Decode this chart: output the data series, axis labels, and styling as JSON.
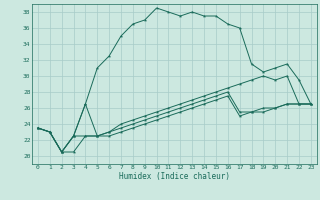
{
  "title": "",
  "xlabel": "Humidex (Indice chaleur)",
  "bg_color": "#cce8e0",
  "grid_color": "#a8ccc8",
  "line_color": "#1a6b5a",
  "x_values": [
    0,
    1,
    2,
    3,
    4,
    5,
    6,
    7,
    8,
    9,
    10,
    11,
    12,
    13,
    14,
    15,
    16,
    17,
    18,
    19,
    20,
    21,
    22,
    23
  ],
  "series1": [
    23.5,
    23.0,
    20.5,
    22.5,
    26.5,
    31.0,
    32.5,
    35.0,
    36.5,
    37.0,
    38.5,
    38.0,
    37.5,
    38.0,
    37.5,
    37.5,
    36.5,
    36.0,
    31.5,
    30.5,
    31.0,
    31.5,
    29.5,
    26.5
  ],
  "series2": [
    23.5,
    23.0,
    20.5,
    22.5,
    26.5,
    22.5,
    23.0,
    24.0,
    24.5,
    25.0,
    25.5,
    26.0,
    26.5,
    27.0,
    27.5,
    28.0,
    28.5,
    29.0,
    29.5,
    30.0,
    29.5,
    30.0,
    26.5,
    26.5
  ],
  "series3": [
    23.5,
    23.0,
    20.5,
    22.5,
    22.5,
    22.5,
    23.0,
    23.5,
    24.0,
    24.5,
    25.0,
    25.5,
    26.0,
    26.5,
    27.0,
    27.5,
    28.0,
    25.5,
    25.5,
    26.0,
    26.0,
    26.5,
    26.5,
    26.5
  ],
  "series4": [
    23.5,
    23.0,
    20.5,
    20.5,
    22.5,
    22.5,
    22.5,
    23.0,
    23.5,
    24.0,
    24.5,
    25.0,
    25.5,
    26.0,
    26.5,
    27.0,
    27.5,
    25.0,
    25.5,
    25.5,
    26.0,
    26.5,
    26.5,
    26.5
  ],
  "ylim": [
    19,
    39
  ],
  "xlim": [
    -0.5,
    23.5
  ],
  "yticks": [
    20,
    22,
    24,
    26,
    28,
    30,
    32,
    34,
    36,
    38
  ],
  "xticks": [
    0,
    1,
    2,
    3,
    4,
    5,
    6,
    7,
    8,
    9,
    10,
    11,
    12,
    13,
    14,
    15,
    16,
    17,
    18,
    19,
    20,
    21,
    22,
    23
  ],
  "figsize": [
    3.2,
    2.0
  ],
  "dpi": 100
}
